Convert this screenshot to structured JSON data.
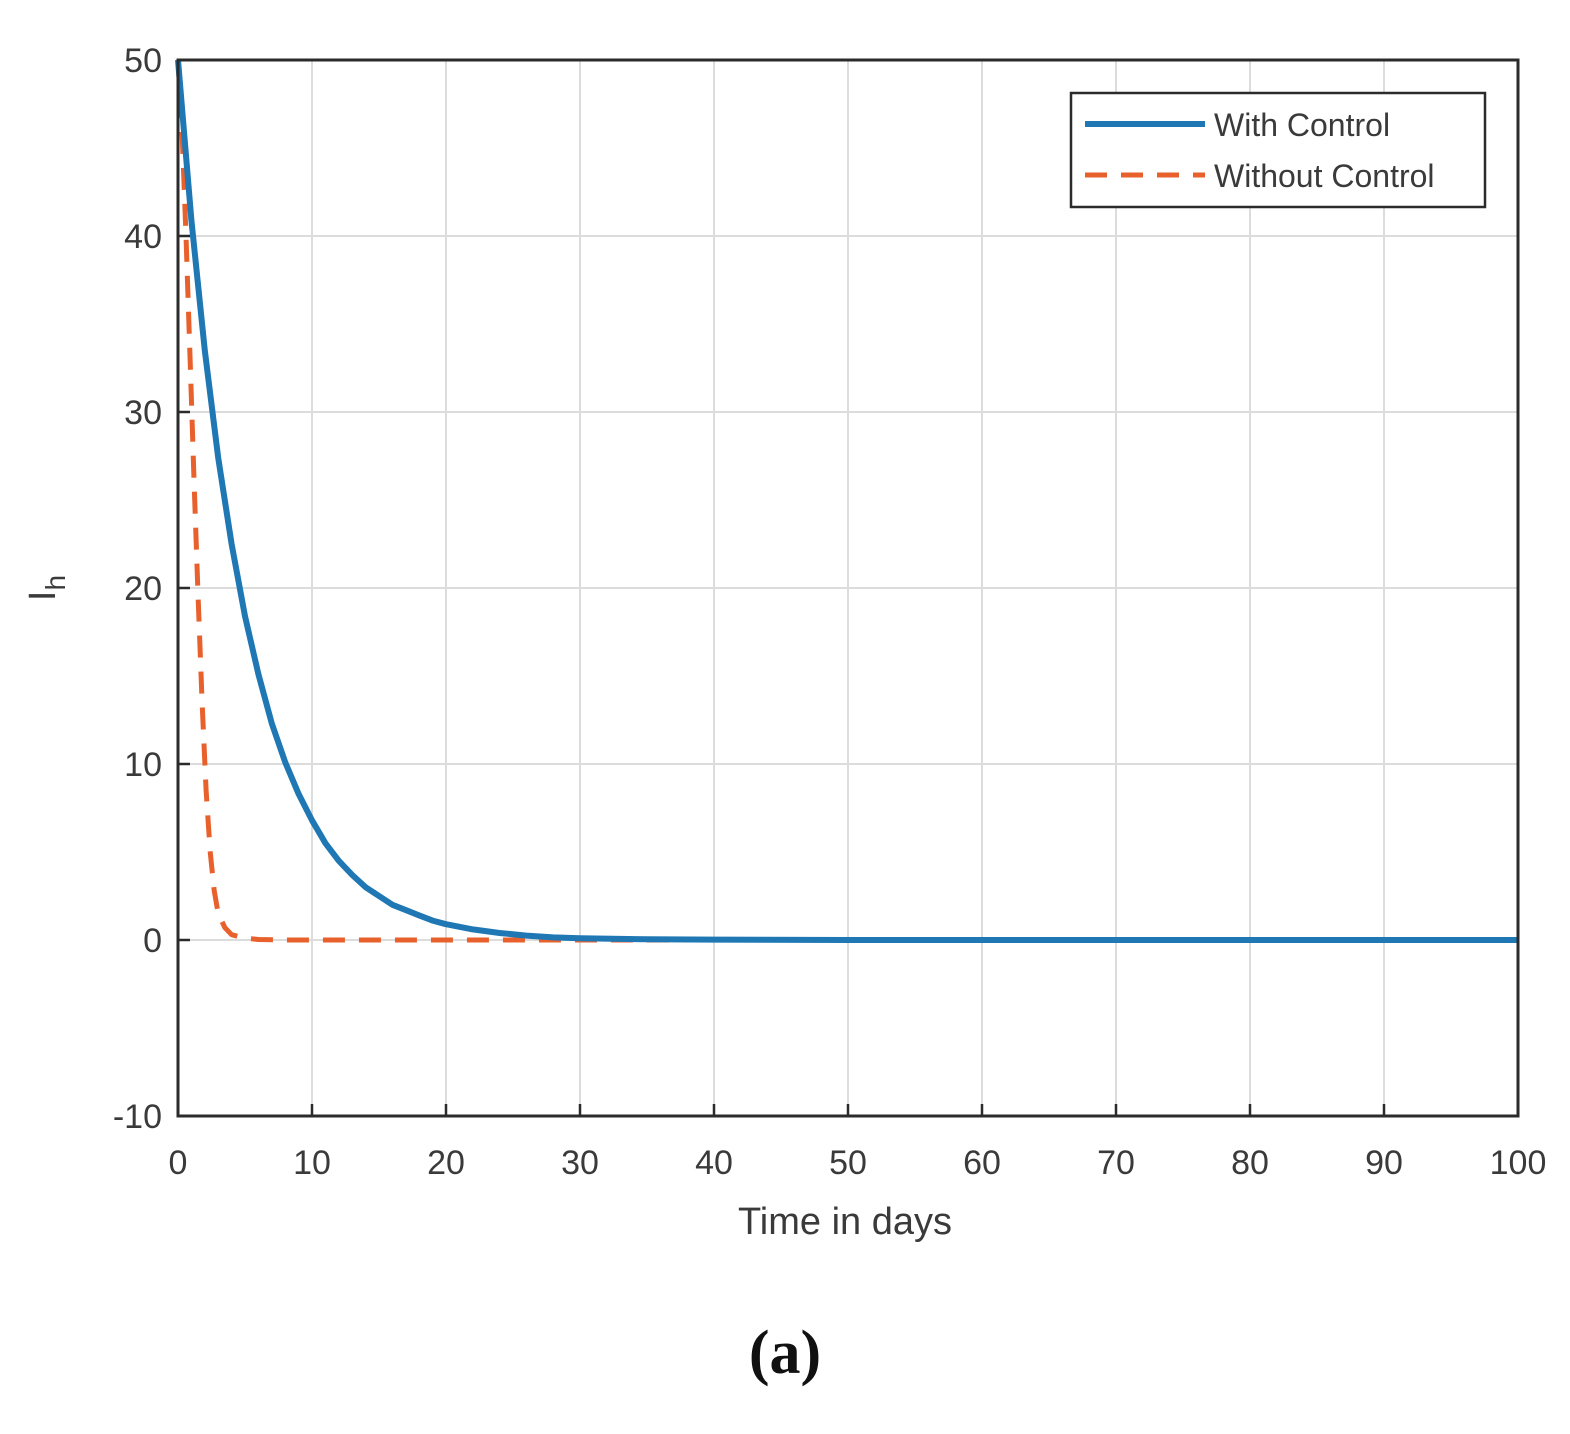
{
  "chart_data": {
    "type": "line",
    "xlabel": "Time in days",
    "ylabel": "I",
    "ylabel_sub": "h",
    "xlim": [
      0,
      100
    ],
    "ylim": [
      -10,
      50
    ],
    "xticks": [
      0,
      10,
      20,
      30,
      40,
      50,
      60,
      70,
      80,
      90,
      100
    ],
    "yticks": [
      -10,
      0,
      10,
      20,
      30,
      40,
      50
    ],
    "grid": true,
    "legend_position": "top-right",
    "series": [
      {
        "name": "With Control",
        "color": "#1f77b4",
        "style": "solid",
        "x": [
          0,
          1,
          2,
          3,
          4,
          5,
          6,
          7,
          8,
          9,
          10,
          11,
          12,
          13,
          14,
          15,
          16,
          17,
          18,
          19,
          20,
          22,
          24,
          26,
          28,
          30,
          35,
          40,
          50,
          60,
          70,
          80,
          90,
          100
        ],
        "y": [
          50,
          40.9,
          33.5,
          27.4,
          22.5,
          18.4,
          15.1,
          12.3,
          10.1,
          8.3,
          6.8,
          5.5,
          4.5,
          3.7,
          3.0,
          2.5,
          2.0,
          1.7,
          1.4,
          1.1,
          0.9,
          0.6,
          0.4,
          0.25,
          0.15,
          0.1,
          0.04,
          0.02,
          0,
          0,
          0,
          0,
          0,
          0
        ]
      },
      {
        "name": "Without Control",
        "color": "#e8602c",
        "style": "dashed",
        "x": [
          0,
          0.3,
          0.6,
          0.9,
          1.2,
          1.5,
          1.8,
          2.1,
          2.4,
          2.7,
          3,
          3.5,
          4,
          5,
          6,
          8,
          10,
          20,
          30,
          40,
          50,
          60,
          70,
          80,
          90,
          100
        ],
        "y": [
          50,
          46,
          40,
          33,
          26,
          19.5,
          13.5,
          8.5,
          5,
          2.8,
          1.5,
          0.7,
          0.3,
          0.1,
          0.03,
          0,
          0,
          0,
          0,
          0,
          0,
          0,
          0,
          0,
          0,
          0
        ]
      }
    ]
  },
  "caption": "(a)"
}
